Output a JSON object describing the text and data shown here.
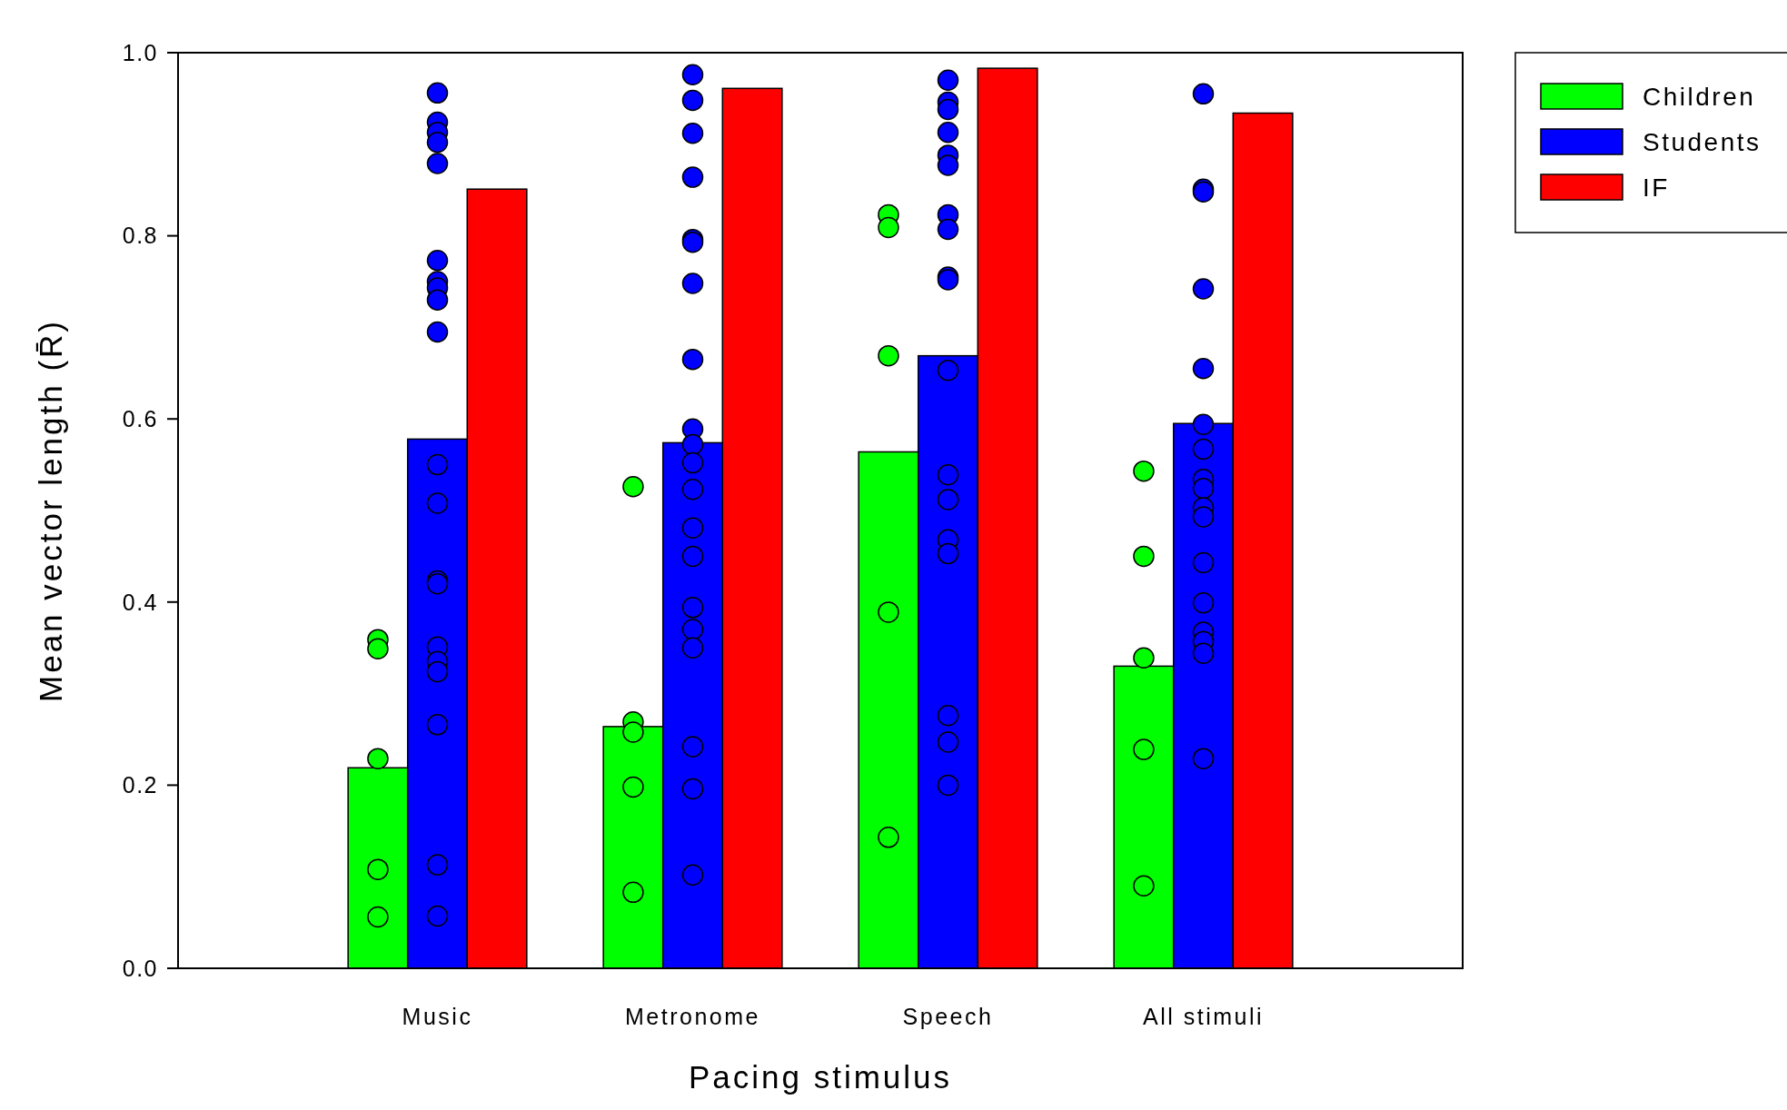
{
  "chart_data": {
    "type": "bar",
    "xlabel": "Pacing stimulus",
    "ylabel": "Mean vector length (R̄)",
    "categories": [
      "Music",
      "Metronome",
      "Speech",
      "All stimuli"
    ],
    "ylim": [
      0,
      1
    ],
    "yticks": [
      {
        "value": 0,
        "label": "0.0"
      },
      {
        "value": 0.2,
        "label": "0.2"
      },
      {
        "value": 0.4,
        "label": "0.4"
      },
      {
        "value": 0.6,
        "label": "0.6"
      },
      {
        "value": 0.8,
        "label": "0.8"
      },
      {
        "value": 1,
        "label": "1.0"
      }
    ],
    "grid": false,
    "legend": "top right",
    "marker": "circle",
    "series": [
      {
        "name": "Children",
        "color": "#00ff00",
        "values": [
          0.219,
          0.264,
          0.564,
          0.33
        ]
      },
      {
        "name": "Students",
        "color": "#0000ff",
        "values": [
          0.578,
          0.574,
          0.669,
          0.595
        ]
      },
      {
        "name": "IF",
        "color": "#ff0000",
        "values": [
          0.851,
          0.961,
          0.983,
          0.934
        ]
      },
      {
        "type": "scatter",
        "color": "#00ff00",
        "x": [
          "Music",
          "Music",
          "Music",
          "Music",
          "Music",
          "Metronome",
          "Metronome",
          "Metronome",
          "Metronome",
          "Metronome",
          "Speech",
          "Speech",
          "Speech",
          "Speech",
          "Speech",
          "All stimuli",
          "All stimuli",
          "All stimuli",
          "All stimuli",
          "All stimuli"
        ],
        "values": [
          0.359,
          0.349,
          0.229,
          0.108,
          0.056,
          0.526,
          0.269,
          0.258,
          0.198,
          0.083,
          0.823,
          0.809,
          0.669,
          0.389,
          0.143,
          0.543,
          0.45,
          0.339,
          0.239,
          0.09
        ]
      },
      {
        "type": "scatter",
        "color": "#0000ff",
        "x": [
          "Music",
          "Music",
          "Music",
          "Music",
          "Music",
          "Music",
          "Music",
          "Music",
          "Music",
          "Music",
          "Music",
          "Music",
          "Music",
          "Music",
          "Music",
          "Music",
          "Music",
          "Music",
          "Music",
          "Music",
          "Metronome",
          "Metronome",
          "Metronome",
          "Metronome",
          "Metronome",
          "Metronome",
          "Metronome",
          "Metronome",
          "Metronome",
          "Metronome",
          "Metronome",
          "Metronome",
          "Metronome",
          "Metronome",
          "Metronome",
          "Metronome",
          "Metronome",
          "Metronome",
          "Metronome",
          "Metronome",
          "Speech",
          "Speech",
          "Speech",
          "Speech",
          "Speech",
          "Speech",
          "Speech",
          "Speech",
          "Speech",
          "Speech",
          "Speech",
          "Speech",
          "Speech",
          "Speech",
          "Speech",
          "Speech",
          "Speech",
          "Speech",
          "All stimuli",
          "All stimuli",
          "All stimuli",
          "All stimuli",
          "All stimuli",
          "All stimuli",
          "All stimuli",
          "All stimuli",
          "All stimuli",
          "All stimuli",
          "All stimuli",
          "All stimuli",
          "All stimuli",
          "All stimuli",
          "All stimuli",
          "All stimuli",
          "All stimuli"
        ],
        "values": [
          0.956,
          0.924,
          0.913,
          0.902,
          0.879,
          0.773,
          0.75,
          0.743,
          0.73,
          0.695,
          0.55,
          0.508,
          0.423,
          0.42,
          0.351,
          0.335,
          0.324,
          0.266,
          0.113,
          0.057,
          0.976,
          0.948,
          0.912,
          0.864,
          0.796,
          0.793,
          0.748,
          0.665,
          0.589,
          0.572,
          0.552,
          0.523,
          0.481,
          0.45,
          0.394,
          0.37,
          0.35,
          0.242,
          0.196,
          0.102,
          0.97,
          0.946,
          0.938,
          0.913,
          0.888,
          0.877,
          0.823,
          0.807,
          0.755,
          0.752,
          0.653,
          0.539,
          0.512,
          0.468,
          0.453,
          0.276,
          0.247,
          0.2,
          0.955,
          0.851,
          0.848,
          0.742,
          0.655,
          0.594,
          0.567,
          0.534,
          0.524,
          0.503,
          0.493,
          0.443,
          0.399,
          0.367,
          0.357,
          0.344,
          0.229
        ]
      }
    ]
  }
}
